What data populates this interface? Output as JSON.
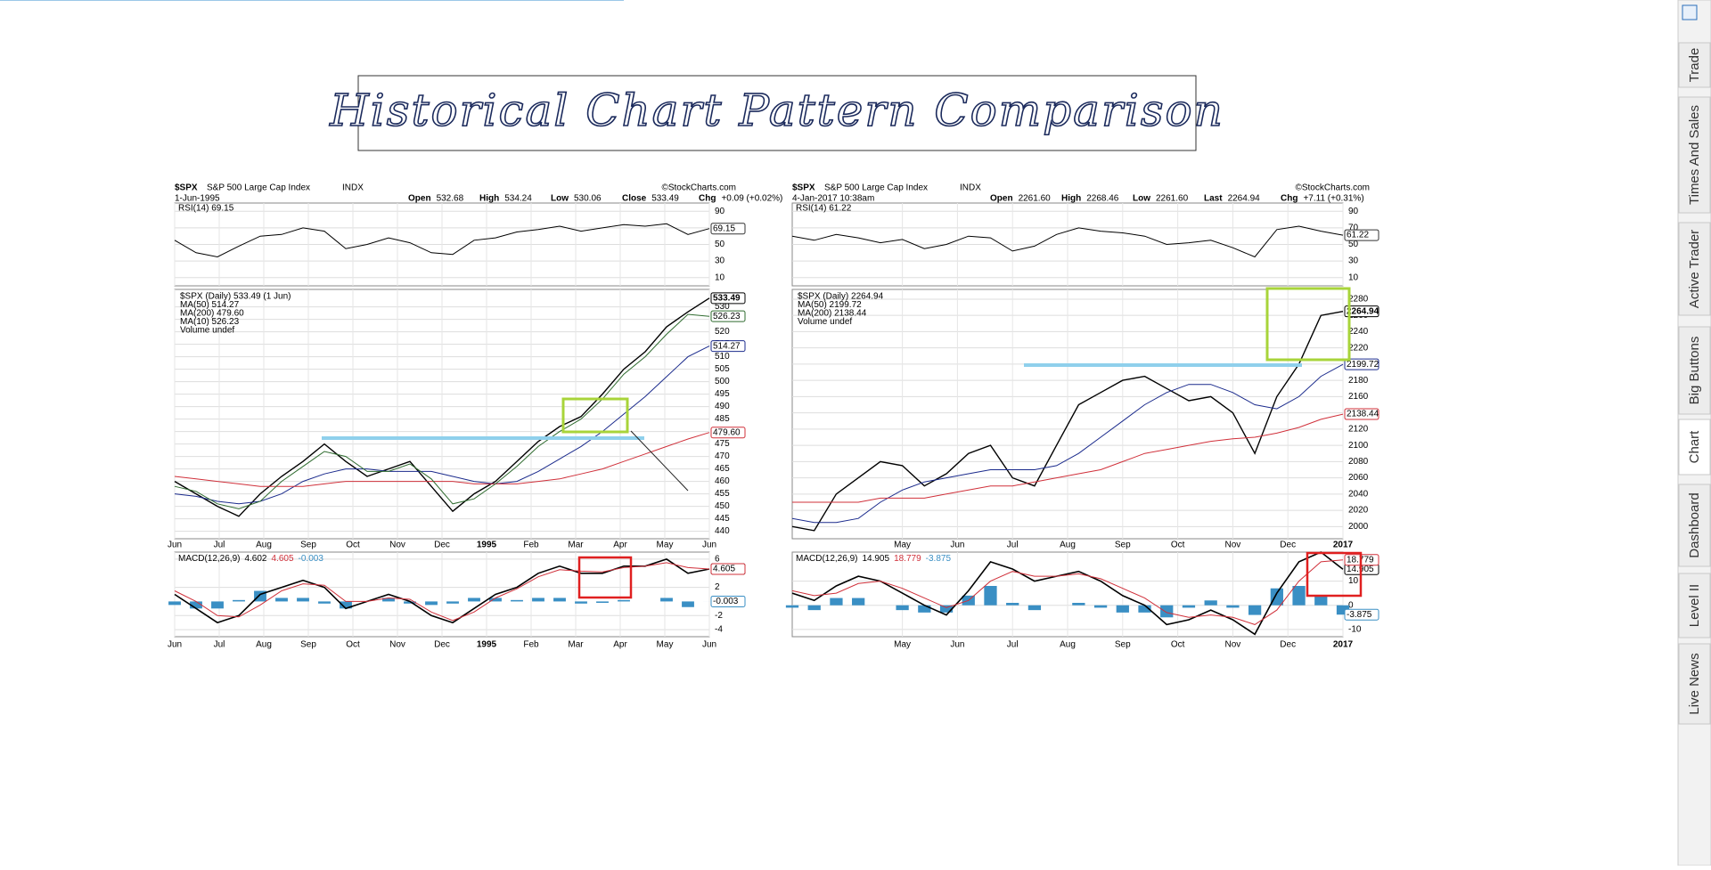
{
  "title": "Historical Chart Pattern Comparison",
  "sidebar": {
    "tabs": [
      "Trade",
      "Times And Sales",
      "Active Trader",
      "Big Buttons",
      "Chart",
      "Dashboard",
      "Level II",
      "Live News"
    ],
    "active": 4
  },
  "charts": [
    {
      "symbol": "$SPX",
      "name": "S&P 500 Large Cap Index",
      "exchange": "INDX",
      "source": "©StockCharts.com",
      "date": "1-Jun-1995",
      "quote": [
        {
          "label": "Open",
          "value": "532.68"
        },
        {
          "label": "High",
          "value": "534.24"
        },
        {
          "label": "Low",
          "value": "530.06"
        },
        {
          "label": "Close",
          "value": "533.49"
        },
        {
          "label": "Chg",
          "value": "+0.09 (+0.02%)"
        }
      ],
      "x_labels": [
        "Jun",
        "Jul",
        "Aug",
        "Sep",
        "Oct",
        "Nov",
        "Dec",
        "1995",
        "Feb",
        "Mar",
        "Apr",
        "May",
        "Jun"
      ],
      "rsi": {
        "label": "RSI(14) 69.15",
        "ylim": [
          0,
          100
        ],
        "yticks": [
          90,
          70,
          50,
          30,
          10
        ],
        "color": "#000000",
        "last_label": "69.15",
        "values": [
          55,
          40,
          35,
          48,
          60,
          62,
          70,
          66,
          45,
          50,
          58,
          52,
          40,
          38,
          55,
          58,
          65,
          68,
          72,
          66,
          70,
          74,
          72,
          75,
          62,
          69.15
        ]
      },
      "price": {
        "ylim": [
          437,
          537
        ],
        "yticks": [
          440,
          445,
          450,
          455,
          460,
          465,
          470,
          475,
          480,
          485,
          490,
          495,
          500,
          505,
          510,
          515,
          520,
          525,
          530
        ],
        "volume_label": "Volume undef",
        "series": [
          {
            "name": "$SPX (Daily) 533.49 (1 Jun)",
            "color": "#000000",
            "last_label": "533.49",
            "values": [
              460,
              455,
              450,
              446,
              455,
              462,
              468,
              475,
              468,
              462,
              465,
              468,
              458,
              448,
              455,
              460,
              468,
              476,
              482,
              486,
              495,
              505,
              512,
              522,
              528,
              533.49
            ]
          },
          {
            "name": "MA(50) 514.27",
            "color": "#1a2a8c",
            "last_label": "514.27",
            "values": [
              455,
              454,
              452,
              451,
              452,
              455,
              460,
              463,
              465,
              465,
              464,
              464,
              464,
              462,
              460,
              459,
              460,
              464,
              469,
              474,
              480,
              487,
              494,
              502,
              510,
              514.27
            ]
          },
          {
            "name": "MA(200) 479.60",
            "color": "#d0303a",
            "last_label": "479.60",
            "values": [
              462,
              461,
              460,
              459,
              458,
              458,
              458,
              459,
              460,
              460,
              460,
              460,
              460,
              460,
              459,
              459,
              459,
              460,
              461,
              463,
              465,
              468,
              471,
              474,
              477,
              479.6
            ]
          },
          {
            "name": "MA(10) 526.23",
            "color": "#2e6b2e",
            "last_label": "526.23",
            "values": [
              458,
              456,
              451,
              449,
              452,
              460,
              466,
              472,
              470,
              464,
              464,
              467,
              461,
              451,
              453,
              459,
              466,
              474,
              480,
              485,
              493,
              503,
              510,
              519,
              527,
              526.23
            ]
          }
        ]
      },
      "macd": {
        "label": "MACD(12,26,9)",
        "ylim": [
          -5,
          7
        ],
        "yticks": [
          6,
          2,
          -2,
          -4
        ],
        "series": [
          {
            "color": "#000000",
            "last_label": "4.602",
            "values": [
              1,
              -1,
              -3,
              -2,
              1,
              2,
              3,
              2,
              -1,
              0,
              1,
              0,
              -2,
              -3,
              -1,
              1,
              2,
              4,
              5,
              4,
              4,
              5,
              5,
              6,
              4,
              4.602
            ]
          },
          {
            "color": "#d0303a",
            "last_label": "4.605",
            "values": [
              1.5,
              0,
              -2,
              -2.2,
              -0.5,
              1.5,
              2.5,
              2.3,
              0,
              0,
              0.5,
              0.3,
              -1.5,
              -2.7,
              -1.5,
              0.5,
              1.8,
              3.5,
              4.5,
              4.3,
              4.2,
              4.8,
              5,
              5.5,
              4.8,
              4.605
            ]
          }
        ],
        "histogram": {
          "color": "#3a8fc4",
          "last_label": "-0.003",
          "values": [
            -0.5,
            -1,
            -1,
            0.2,
            1.5,
            0.5,
            0.5,
            -0.3,
            -1,
            0,
            0.5,
            -0.3,
            -0.5,
            -0.3,
            0.5,
            0.5,
            0.2,
            0.5,
            0.5,
            -0.3,
            -0.2,
            0.2,
            0,
            0.5,
            -0.8,
            -0.003
          ]
        }
      }
    },
    {
      "symbol": "$SPX",
      "name": "S&P 500 Large Cap Index",
      "exchange": "INDX",
      "source": "©StockCharts.com",
      "date": "4-Jan-2017 10:38am",
      "quote": [
        {
          "label": "Open",
          "value": "2261.60"
        },
        {
          "label": "High",
          "value": "2268.46"
        },
        {
          "label": "Low",
          "value": "2261.60"
        },
        {
          "label": "Last",
          "value": "2264.94"
        },
        {
          "label": "Chg",
          "value": "+7.11 (+0.31%)"
        }
      ],
      "x_labels": [
        "May",
        "Jun",
        "Jul",
        "Aug",
        "Sep",
        "Oct",
        "Nov",
        "Dec",
        "2017"
      ],
      "rsi": {
        "label": "RSI(14) 61.22",
        "ylim": [
          0,
          100
        ],
        "yticks": [
          90,
          70,
          50,
          30,
          10
        ],
        "color": "#000000",
        "last_label": "61.22",
        "values": [
          60,
          55,
          62,
          58,
          52,
          56,
          45,
          50,
          60,
          58,
          42,
          48,
          62,
          70,
          66,
          64,
          60,
          50,
          52,
          55,
          46,
          35,
          68,
          72,
          66,
          61.22
        ]
      },
      "price": {
        "ylim": [
          1985,
          2292
        ],
        "yticks": [
          2000,
          2020,
          2040,
          2060,
          2080,
          2100,
          2120,
          2140,
          2160,
          2180,
          2200,
          2220,
          2240,
          2260,
          2280
        ],
        "volume_label": "Volume undef",
        "series": [
          {
            "name": "$SPX (Daily) 2264.94",
            "color": "#000000",
            "last_label": "2264.94",
            "values": [
              2000,
              1995,
              2040,
              2060,
              2080,
              2075,
              2050,
              2065,
              2090,
              2100,
              2060,
              2050,
              2100,
              2150,
              2165,
              2180,
              2185,
              2170,
              2155,
              2160,
              2140,
              2090,
              2160,
              2200,
              2260,
              2264.94
            ]
          },
          {
            "name": "MA(50) 2199.72",
            "color": "#1a2a8c",
            "last_label": "2199.72",
            "values": [
              2010,
              2005,
              2005,
              2010,
              2030,
              2045,
              2055,
              2060,
              2065,
              2070,
              2070,
              2070,
              2075,
              2090,
              2110,
              2130,
              2150,
              2165,
              2175,
              2175,
              2165,
              2150,
              2145,
              2160,
              2185,
              2199.72
            ]
          },
          {
            "name": "MA(200) 2138.44",
            "color": "#d0303a",
            "last_label": "2138.44",
            "values": [
              2030,
              2030,
              2030,
              2030,
              2035,
              2035,
              2035,
              2040,
              2045,
              2050,
              2050,
              2055,
              2060,
              2065,
              2070,
              2080,
              2090,
              2095,
              2100,
              2105,
              2108,
              2110,
              2115,
              2122,
              2132,
              2138.44
            ]
          }
        ]
      },
      "macd": {
        "label": "MACD(12,26,9)",
        "ylim": [
          -13,
          22
        ],
        "yticks": [
          10,
          0,
          -10
        ],
        "series": [
          {
            "color": "#000000",
            "last_label": "14.905",
            "values": [
              5,
              2,
              8,
              12,
              10,
              5,
              0,
              -4,
              6,
              18,
              15,
              10,
              12,
              14,
              10,
              4,
              0,
              -8,
              -6,
              -2,
              -6,
              -12,
              5,
              18,
              22,
              14.905
            ]
          },
          {
            "color": "#d0303a",
            "last_label": "18.779",
            "values": [
              6,
              4,
              5,
              9,
              10,
              7,
              3,
              -1,
              2,
              10,
              14,
              12,
              12,
              13,
              11,
              7,
              3,
              -3,
              -5,
              -4,
              -5,
              -8,
              -2,
              10,
              18,
              18.779
            ]
          }
        ],
        "histogram": {
          "color": "#3a8fc4",
          "last_label": "-3.875",
          "values": [
            -1,
            -2,
            3,
            3,
            0,
            -2,
            -3,
            -3,
            4,
            8,
            1,
            -2,
            0,
            1,
            -1,
            -3,
            -3,
            -5,
            -1,
            2,
            -1,
            -4,
            7,
            8,
            4,
            -3.875
          ]
        }
      }
    }
  ]
}
